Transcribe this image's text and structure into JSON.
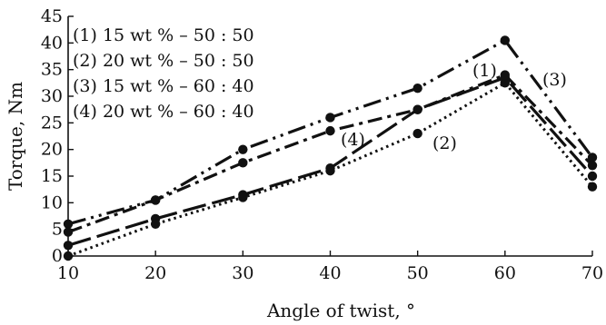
{
  "chart_data": {
    "type": "line",
    "title": "",
    "xlabel": "Angle of twist, °",
    "ylabel": "Torque, Nm",
    "xlim": [
      10,
      70
    ],
    "ylim": [
      0,
      45
    ],
    "xticks": [
      "10",
      "20",
      "30",
      "40",
      "50",
      "60",
      "70"
    ],
    "yticks": [
      "0",
      "5",
      "10",
      "15",
      "20",
      "25",
      "30",
      "35",
      "40",
      "45"
    ],
    "grid": false,
    "legend_position": "top-left",
    "x": [
      10,
      20,
      30,
      40,
      50,
      60,
      70
    ],
    "series": [
      {
        "name": "(1) 15 wt % – 50 : 50",
        "label": "(1)",
        "style": "long-dash",
        "values": [
          2,
          7,
          11.5,
          16.5,
          27.5,
          33.5,
          15
        ]
      },
      {
        "name": "(2) 20 wt % – 50 : 50",
        "label": "(2)",
        "style": "dotted",
        "values": [
          0,
          6,
          11,
          16,
          23,
          32.5,
          13
        ]
      },
      {
        "name": "(3) 15 wt % – 60 : 40",
        "label": "(3)",
        "style": "dash-dot-dot",
        "values": [
          6,
          10.5,
          20,
          26,
          31.5,
          40.5,
          18.5
        ]
      },
      {
        "name": "(4) 20 wt % – 60 : 40",
        "label": "(4)",
        "style": "dash-dot",
        "values": [
          4.5,
          10.5,
          17.5,
          23.5,
          27.5,
          34,
          17
        ]
      }
    ]
  }
}
